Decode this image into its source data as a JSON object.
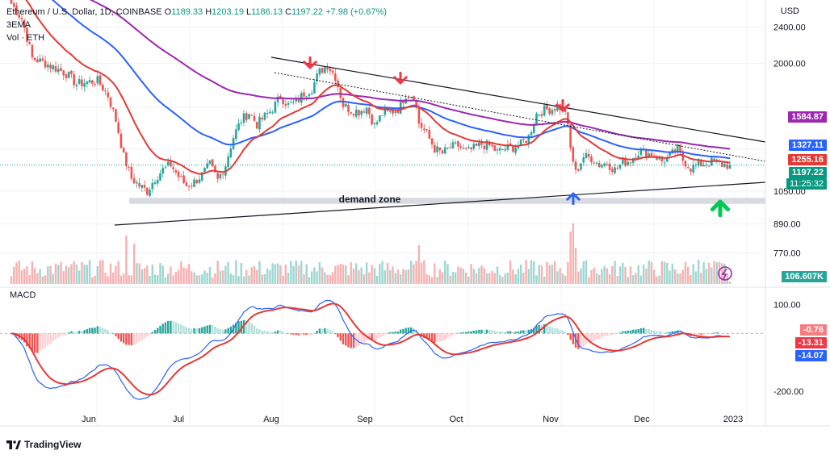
{
  "header": {
    "symbol_title": "Ethereum / U.S. Dollar, 1D, COINBASE",
    "o_label": "O",
    "o_value": "1189.33",
    "h_label": "H",
    "h_value": "1203.19",
    "l_label": "L",
    "l_value": "1186.13",
    "c_label": "C",
    "c_value": "1197.22",
    "change": "+7.98 (+0.67%)",
    "indicator_1": "3EMA",
    "indicator_2": "Vol · ETH"
  },
  "axis_unit": "USD",
  "macd_label": "MACD",
  "brand": "TradingView",
  "colors": {
    "up": "#26a69a",
    "down": "#ef5350",
    "ema_short": "#e53935",
    "ema_mid": "#2962ff",
    "ema_long": "#9c27b0",
    "macd_line": "#2962ff",
    "signal_line": "#e53935",
    "demand_zone": "#d1d4dc",
    "arrow_down": "#f23645",
    "arrow_up_blue": "#2962ff",
    "arrow_up_green": "#00c853"
  },
  "price_tags": {
    "ema_long": "1584.87",
    "ema_mid": "1327.11",
    "ema_short": "1255.16",
    "last_price": "1197.22",
    "countdown": "11:25:32",
    "volume": "106.607K",
    "macd_hist": "-0.76",
    "macd_signal": "-13.31",
    "macd_line": "-14.07"
  },
  "annotations": {
    "demand_zone_label": "demand zone"
  },
  "chart_data": {
    "type": "candlestick",
    "title": "Ethereum / U.S. Dollar, 1D, COINBASE",
    "x_tick_labels": [
      "Jun",
      "Jul",
      "Aug",
      "Sep",
      "Oct",
      "Nov",
      "Dec",
      "2023"
    ],
    "price_axis_ticks": [
      2400,
      2000,
      1050,
      890,
      770
    ],
    "price_axis_tick_labels": [
      "2400.00",
      "2000.00",
      "1050.00",
      "890.00",
      "770.00"
    ],
    "price_range": [
      650,
      2750
    ],
    "price_scale": "log",
    "macd_axis_ticks": [
      100,
      -200
    ],
    "macd_axis_tick_labels": [
      "100.00",
      "-200.00"
    ],
    "macd_range": [
      -320,
      160
    ],
    "anchors": [
      [
        0,
        2700
      ],
      [
        4,
        2500
      ],
      [
        8,
        2050
      ],
      [
        13,
        2000
      ],
      [
        17,
        1950
      ],
      [
        21,
        1900
      ],
      [
        25,
        1800
      ],
      [
        29,
        1820
      ],
      [
        33,
        1830
      ],
      [
        37,
        1700
      ],
      [
        40,
        1500
      ],
      [
        43,
        1250
      ],
      [
        46,
        1120
      ],
      [
        49,
        1080
      ],
      [
        52,
        1050
      ],
      [
        55,
        1120
      ],
      [
        58,
        1170
      ],
      [
        61,
        1200
      ],
      [
        64,
        1130
      ],
      [
        67,
        1080
      ],
      [
        70,
        1100
      ],
      [
        73,
        1140
      ],
      [
        76,
        1200
      ],
      [
        79,
        1110
      ],
      [
        82,
        1200
      ],
      [
        85,
        1380
      ],
      [
        88,
        1500
      ],
      [
        91,
        1560
      ],
      [
        94,
        1470
      ],
      [
        97,
        1530
      ],
      [
        100,
        1590
      ],
      [
        103,
        1690
      ],
      [
        106,
        1620
      ],
      [
        109,
        1640
      ],
      [
        112,
        1720
      ],
      [
        115,
        1760
      ],
      [
        118,
        1920
      ],
      [
        121,
        1980
      ],
      [
        124,
        1870
      ],
      [
        127,
        1620
      ],
      [
        130,
        1580
      ],
      [
        133,
        1570
      ],
      [
        136,
        1600
      ],
      [
        139,
        1460
      ],
      [
        142,
        1550
      ],
      [
        145,
        1560
      ],
      [
        148,
        1590
      ],
      [
        151,
        1710
      ],
      [
        154,
        1700
      ],
      [
        156,
        1480
      ],
      [
        159,
        1400
      ],
      [
        162,
        1300
      ],
      [
        165,
        1270
      ],
      [
        168,
        1310
      ],
      [
        171,
        1320
      ],
      [
        174,
        1280
      ],
      [
        177,
        1300
      ],
      [
        180,
        1330
      ],
      [
        183,
        1320
      ],
      [
        186,
        1280
      ],
      [
        189,
        1300
      ],
      [
        192,
        1310
      ],
      [
        195,
        1330
      ],
      [
        198,
        1380
      ],
      [
        201,
        1550
      ],
      [
        204,
        1580
      ],
      [
        207,
        1590
      ],
      [
        209,
        1610
      ],
      [
        212,
        1580
      ],
      [
        214,
        1300
      ],
      [
        216,
        1150
      ],
      [
        219,
        1250
      ],
      [
        222,
        1240
      ],
      [
        225,
        1200
      ],
      [
        228,
        1210
      ],
      [
        231,
        1170
      ],
      [
        234,
        1210
      ],
      [
        237,
        1230
      ],
      [
        240,
        1280
      ],
      [
        243,
        1270
      ],
      [
        246,
        1260
      ],
      [
        249,
        1220
      ],
      [
        252,
        1250
      ],
      [
        255,
        1300
      ],
      [
        257,
        1230
      ],
      [
        260,
        1180
      ],
      [
        263,
        1200
      ],
      [
        266,
        1210
      ],
      [
        269,
        1220
      ],
      [
        272,
        1200
      ],
      [
        275,
        1197
      ]
    ],
    "volume_range": [
      0,
      3000000
    ],
    "n_days": 276,
    "last_close": 1197.22,
    "ema_values_last": {
      "ema_short": 1255.16,
      "ema_mid": 1327.11,
      "ema_long": 1584.87
    },
    "macd_values_last": {
      "histogram": -0.76,
      "signal": -13.31,
      "macd": -14.07
    },
    "volume_last": 106607
  }
}
